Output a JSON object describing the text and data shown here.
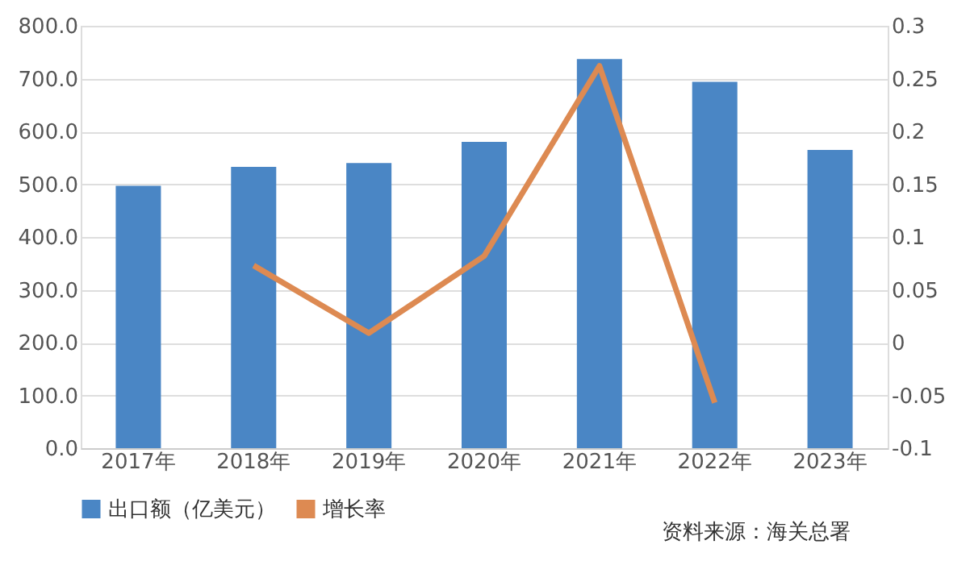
{
  "chart_data": {
    "type": "bar",
    "categories": [
      "2017年",
      "2018年",
      "2019年",
      "2020年",
      "2021年",
      "2022年",
      "2023年"
    ],
    "series": [
      {
        "name": "出口额（亿美元）",
        "color": "#4a86c5",
        "values": [
          497,
          533,
          540,
          580,
          737,
          694,
          565
        ]
      },
      {
        "name": "增长率",
        "color": "#dd8a52",
        "type": "line",
        "axis": "y2",
        "values": [
          null,
          0.073,
          0.009,
          0.082,
          0.262,
          -0.057,
          null
        ]
      }
    ],
    "ylim": [
      0,
      800
    ],
    "yticks": [
      {
        "value": 0,
        "label": "0.0"
      },
      {
        "value": 100,
        "label": "100.0"
      },
      {
        "value": 200,
        "label": "200.0"
      },
      {
        "value": 300,
        "label": "300.0"
      },
      {
        "value": 400,
        "label": "400.0"
      },
      {
        "value": 500,
        "label": "500.0"
      },
      {
        "value": 600,
        "label": "600.0"
      },
      {
        "value": 700,
        "label": "700.0"
      },
      {
        "value": 800,
        "label": "800.0"
      }
    ],
    "y2lim": [
      -0.1,
      0.3
    ],
    "y2ticks": [
      -0.1,
      -0.05,
      0,
      0.05,
      0.1,
      0.15,
      0.2,
      0.25,
      0.3
    ],
    "grid": "y",
    "legend": "bottom",
    "marker": "none",
    "line_style": "solid",
    "annotations": [
      "资料来源：海关总署"
    ]
  }
}
